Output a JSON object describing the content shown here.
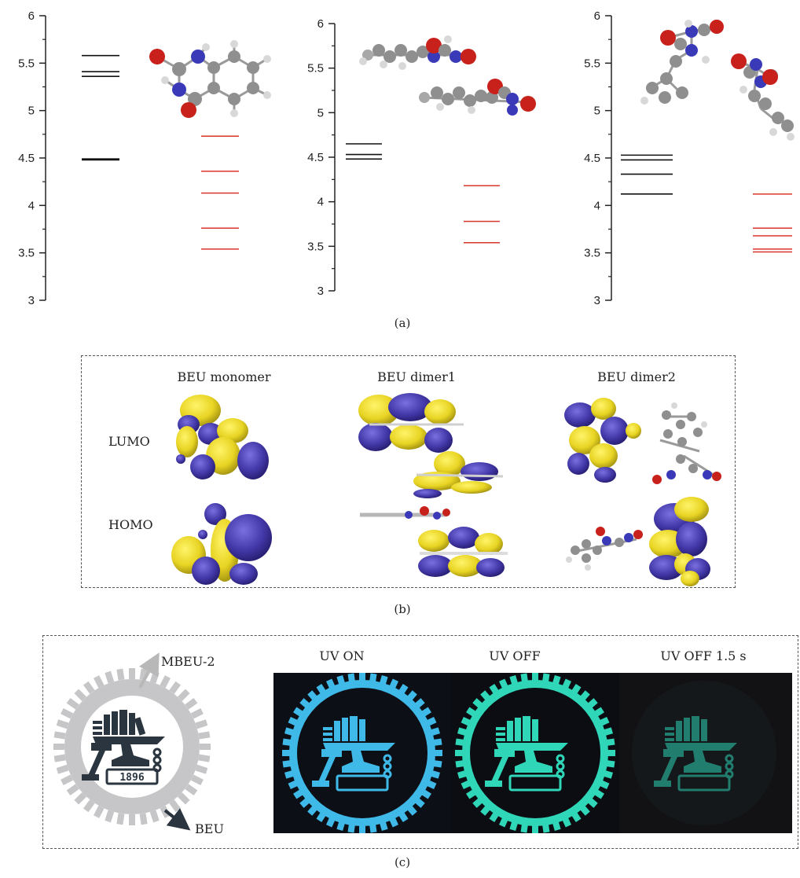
{
  "panel_a": {
    "label": "(a)",
    "charts": [
      {
        "ticks": [
          "3",
          "3.5",
          "4",
          "4.5",
          "5",
          "5.5",
          "6"
        ],
        "ylim": [
          3,
          6
        ],
        "black_levels": [
          5.58,
          5.41,
          5.36,
          4.49,
          4.48
        ],
        "red_levels": [
          4.73,
          4.36,
          4.13,
          3.76,
          3.54
        ]
      },
      {
        "ticks": [
          "3",
          "3.5",
          "4",
          "4.5",
          "5",
          "5.5",
          "6"
        ],
        "ylim": [
          3,
          6
        ],
        "black_levels": [
          4.65,
          4.53,
          4.48
        ],
        "red_levels": [
          4.18,
          3.78,
          3.54
        ]
      },
      {
        "ticks": [
          "3",
          "3.5",
          "4",
          "4.5",
          "5",
          "5.5",
          "6"
        ],
        "ylim": [
          3,
          6
        ],
        "black_levels": [
          4.53,
          4.48,
          4.33,
          4.12
        ],
        "red_levels": [
          4.12,
          3.76,
          3.68,
          3.54,
          3.51
        ]
      }
    ]
  },
  "panel_b": {
    "label": "(b)",
    "columns": [
      "BEU monomer",
      "BEU dimer1",
      "BEU dimer2"
    ],
    "rows": [
      "LUMO",
      "HOMO"
    ]
  },
  "panel_c": {
    "label": "(c)",
    "logo_labels": {
      "top": "MBEU-2",
      "bottom": "BEU"
    },
    "logo_year": "1896",
    "photo_titles": [
      "UV ON",
      "UV OFF",
      "UV OFF 1.5 s"
    ]
  },
  "colors": {
    "occupied_level": "#111111",
    "unoccupied_level": "#d9362b",
    "lobe_yellow": "#e8d423",
    "lobe_blue": "#4338a8",
    "uv_on_glow": "#3fb9e8",
    "uv_off_glow": "#2fd6b8"
  }
}
